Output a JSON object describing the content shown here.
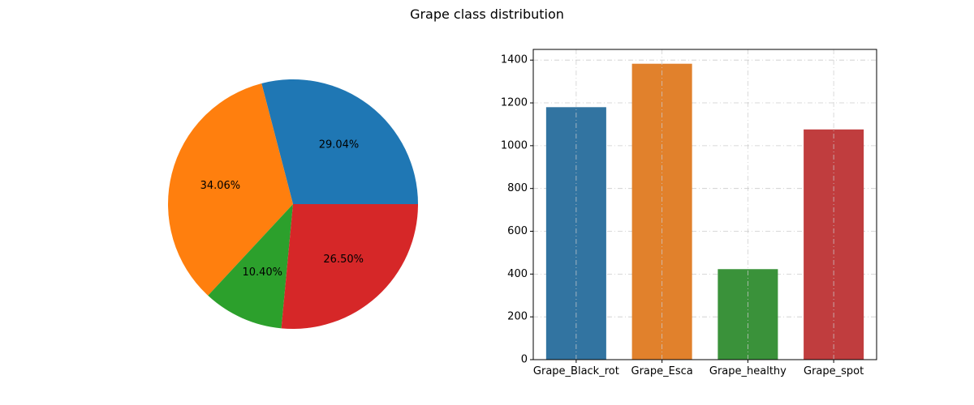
{
  "figure": {
    "title": "Grape class distribution"
  },
  "chart_data": [
    {
      "type": "pie",
      "categories": [
        "Grape_Black_rot",
        "Grape_Esca",
        "Grape_healthy",
        "Grape_spot"
      ],
      "values": [
        1180,
        1383,
        423,
        1076
      ],
      "slice_labels": [
        "29.04%",
        "34.06%",
        "10.40%",
        "26.50%"
      ],
      "colors": [
        "#1f77b4",
        "#ff7f0e",
        "#2ca02c",
        "#d62728"
      ],
      "start_angle_deg": 0,
      "direction": "counterclockwise"
    },
    {
      "type": "bar",
      "categories": [
        "Grape_Black_rot",
        "Grape_Esca",
        "Grape_healthy",
        "Grape_spot"
      ],
      "values": [
        1180,
        1383,
        423,
        1076
      ],
      "colors": [
        "#3274a1",
        "#e1812c",
        "#3a923a",
        "#c03d3e"
      ],
      "xlabel": "",
      "ylabel": "",
      "ylim": [
        0,
        1450
      ],
      "yticks": [
        0,
        200,
        400,
        600,
        800,
        1000,
        1200,
        1400
      ],
      "grid": true,
      "grid_style": "dashdot"
    }
  ]
}
